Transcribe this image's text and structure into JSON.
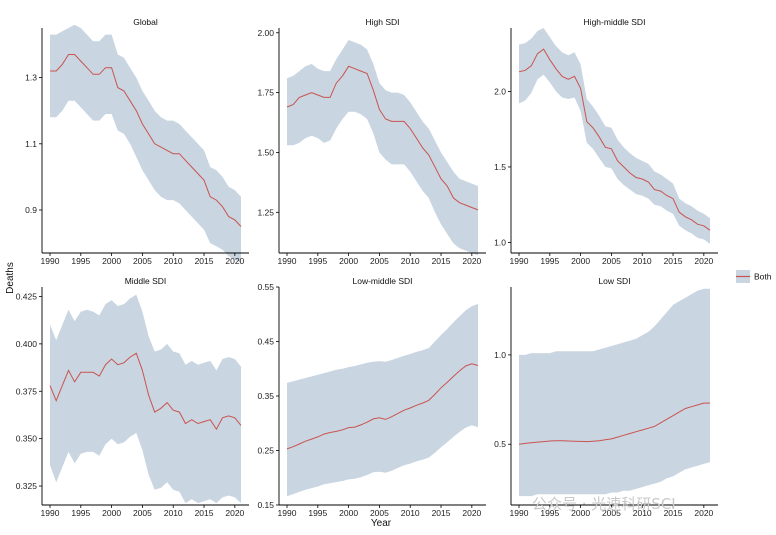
{
  "colors": {
    "band": "#c9d6e2",
    "line": "#c9534f",
    "axis": "#000000"
  },
  "chart_data": {
    "type": "line",
    "ylabel": "Deaths",
    "xlabel": "Year",
    "legend": {
      "position": "right",
      "label": "Both"
    },
    "years": [
      1990,
      1991,
      1992,
      1993,
      1994,
      1995,
      1996,
      1997,
      1998,
      1999,
      2000,
      2001,
      2002,
      2003,
      2004,
      2005,
      2006,
      2007,
      2008,
      2009,
      2010,
      2011,
      2012,
      2013,
      2014,
      2015,
      2016,
      2017,
      2018,
      2019,
      2020,
      2021
    ],
    "xticks": [
      1990,
      1995,
      2000,
      2005,
      2010,
      2015,
      2020
    ],
    "panels": [
      {
        "title": "Global",
        "ylim": [
          0.77,
          1.45
        ],
        "yticks": [
          "0.9",
          "1.1",
          "1.3"
        ],
        "ytick_values": [
          0.9,
          1.1,
          1.3
        ],
        "value": [
          1.32,
          1.32,
          1.34,
          1.37,
          1.37,
          1.35,
          1.33,
          1.31,
          1.31,
          1.33,
          1.33,
          1.27,
          1.26,
          1.23,
          1.2,
          1.16,
          1.13,
          1.1,
          1.09,
          1.08,
          1.07,
          1.07,
          1.05,
          1.03,
          1.01,
          0.99,
          0.94,
          0.93,
          0.91,
          0.88,
          0.87,
          0.85
        ],
        "upper": [
          1.43,
          1.43,
          1.44,
          1.45,
          1.46,
          1.45,
          1.43,
          1.41,
          1.41,
          1.43,
          1.43,
          1.37,
          1.36,
          1.33,
          1.3,
          1.26,
          1.23,
          1.2,
          1.18,
          1.17,
          1.17,
          1.16,
          1.14,
          1.12,
          1.1,
          1.08,
          1.03,
          1.02,
          1.0,
          0.97,
          0.96,
          0.94
        ],
        "lower": [
          1.18,
          1.18,
          1.2,
          1.23,
          1.23,
          1.21,
          1.19,
          1.17,
          1.17,
          1.19,
          1.19,
          1.14,
          1.13,
          1.1,
          1.06,
          1.02,
          0.99,
          0.96,
          0.94,
          0.93,
          0.93,
          0.92,
          0.9,
          0.88,
          0.86,
          0.84,
          0.8,
          0.79,
          0.78,
          0.76,
          0.75,
          0.74
        ]
      },
      {
        "title": "High SDI",
        "ylim": [
          1.08,
          2.02
        ],
        "yticks": [
          "1.25",
          "1.50",
          "1.75",
          "2.00"
        ],
        "ytick_values": [
          1.25,
          1.5,
          1.75,
          2.0
        ],
        "value": [
          1.69,
          1.7,
          1.73,
          1.74,
          1.75,
          1.74,
          1.73,
          1.73,
          1.79,
          1.82,
          1.86,
          1.85,
          1.84,
          1.83,
          1.76,
          1.68,
          1.64,
          1.63,
          1.63,
          1.63,
          1.6,
          1.56,
          1.52,
          1.49,
          1.44,
          1.39,
          1.36,
          1.31,
          1.29,
          1.28,
          1.27,
          1.26
        ],
        "upper": [
          1.81,
          1.82,
          1.84,
          1.86,
          1.87,
          1.85,
          1.84,
          1.84,
          1.89,
          1.93,
          1.97,
          1.96,
          1.95,
          1.93,
          1.87,
          1.79,
          1.76,
          1.75,
          1.75,
          1.74,
          1.71,
          1.67,
          1.63,
          1.6,
          1.55,
          1.5,
          1.46,
          1.42,
          1.39,
          1.38,
          1.37,
          1.36
        ],
        "lower": [
          1.53,
          1.53,
          1.54,
          1.56,
          1.57,
          1.56,
          1.54,
          1.55,
          1.6,
          1.64,
          1.67,
          1.67,
          1.66,
          1.64,
          1.58,
          1.5,
          1.47,
          1.45,
          1.45,
          1.45,
          1.42,
          1.38,
          1.34,
          1.31,
          1.25,
          1.2,
          1.16,
          1.12,
          1.1,
          1.09,
          1.08,
          1.07
        ]
      },
      {
        "title": "High-middle SDI",
        "ylim": [
          0.93,
          2.42
        ],
        "yticks": [
          "1.0",
          "1.5",
          "2.0"
        ],
        "ytick_values": [
          1.0,
          1.5,
          2.0
        ],
        "value": [
          2.13,
          2.14,
          2.17,
          2.25,
          2.28,
          2.21,
          2.15,
          2.1,
          2.08,
          2.1,
          2.02,
          1.8,
          1.76,
          1.7,
          1.63,
          1.62,
          1.54,
          1.5,
          1.46,
          1.43,
          1.42,
          1.4,
          1.35,
          1.34,
          1.31,
          1.29,
          1.2,
          1.17,
          1.15,
          1.12,
          1.11,
          1.08
        ],
        "upper": [
          2.31,
          2.32,
          2.35,
          2.4,
          2.42,
          2.36,
          2.3,
          2.26,
          2.24,
          2.26,
          2.18,
          1.95,
          1.9,
          1.84,
          1.77,
          1.76,
          1.68,
          1.63,
          1.59,
          1.56,
          1.54,
          1.52,
          1.47,
          1.45,
          1.42,
          1.39,
          1.29,
          1.26,
          1.24,
          1.21,
          1.19,
          1.16
        ],
        "lower": [
          1.92,
          1.94,
          1.99,
          2.08,
          2.11,
          2.06,
          2.0,
          1.96,
          1.95,
          1.96,
          1.87,
          1.66,
          1.62,
          1.56,
          1.5,
          1.49,
          1.42,
          1.38,
          1.35,
          1.32,
          1.31,
          1.29,
          1.25,
          1.24,
          1.21,
          1.19,
          1.11,
          1.08,
          1.06,
          1.03,
          1.02,
          0.99
        ]
      },
      {
        "title": "Middle SDI",
        "ylim": [
          0.315,
          0.43
        ],
        "yticks": [
          "0.325",
          "0.350",
          "0.375",
          "0.400",
          "0.425"
        ],
        "ytick_values": [
          0.325,
          0.35,
          0.375,
          0.4,
          0.425
        ],
        "value": [
          0.378,
          0.37,
          0.378,
          0.386,
          0.38,
          0.385,
          0.385,
          0.385,
          0.383,
          0.389,
          0.392,
          0.389,
          0.39,
          0.393,
          0.395,
          0.386,
          0.373,
          0.364,
          0.366,
          0.369,
          0.365,
          0.364,
          0.358,
          0.36,
          0.358,
          0.359,
          0.36,
          0.355,
          0.361,
          0.362,
          0.361,
          0.357
        ],
        "upper": [
          0.41,
          0.402,
          0.41,
          0.418,
          0.412,
          0.417,
          0.418,
          0.417,
          0.415,
          0.421,
          0.423,
          0.42,
          0.421,
          0.424,
          0.426,
          0.417,
          0.404,
          0.396,
          0.397,
          0.4,
          0.396,
          0.395,
          0.389,
          0.391,
          0.389,
          0.39,
          0.391,
          0.386,
          0.392,
          0.393,
          0.392,
          0.388
        ],
        "lower": [
          0.336,
          0.327,
          0.335,
          0.343,
          0.337,
          0.342,
          0.343,
          0.343,
          0.341,
          0.347,
          0.35,
          0.347,
          0.348,
          0.351,
          0.353,
          0.344,
          0.331,
          0.323,
          0.324,
          0.327,
          0.323,
          0.322,
          0.316,
          0.318,
          0.316,
          0.317,
          0.318,
          0.316,
          0.319,
          0.32,
          0.319,
          0.316
        ]
      },
      {
        "title": "Low-middle SDI",
        "ylim": [
          0.15,
          0.55
        ],
        "yticks": [
          "0.15",
          "0.25",
          "0.35",
          "0.45",
          "0.55"
        ],
        "ytick_values": [
          0.15,
          0.25,
          0.35,
          0.45,
          0.55
        ],
        "value": [
          0.253,
          0.257,
          0.262,
          0.267,
          0.271,
          0.275,
          0.28,
          0.283,
          0.285,
          0.288,
          0.292,
          0.293,
          0.297,
          0.302,
          0.308,
          0.31,
          0.307,
          0.312,
          0.318,
          0.324,
          0.328,
          0.333,
          0.337,
          0.342,
          0.353,
          0.365,
          0.375,
          0.386,
          0.396,
          0.405,
          0.409,
          0.406
        ],
        "upper": [
          0.374,
          0.377,
          0.38,
          0.383,
          0.386,
          0.389,
          0.392,
          0.395,
          0.398,
          0.4,
          0.403,
          0.405,
          0.408,
          0.411,
          0.413,
          0.414,
          0.413,
          0.416,
          0.42,
          0.424,
          0.427,
          0.431,
          0.434,
          0.438,
          0.45,
          0.462,
          0.473,
          0.485,
          0.496,
          0.507,
          0.515,
          0.519
        ],
        "lower": [
          0.166,
          0.17,
          0.174,
          0.178,
          0.181,
          0.184,
          0.188,
          0.19,
          0.192,
          0.194,
          0.197,
          0.198,
          0.201,
          0.205,
          0.21,
          0.211,
          0.209,
          0.213,
          0.218,
          0.223,
          0.226,
          0.23,
          0.233,
          0.237,
          0.246,
          0.256,
          0.265,
          0.275,
          0.284,
          0.292,
          0.296,
          0.293
        ]
      },
      {
        "title": "Low SDI",
        "ylim": [
          0.16,
          1.38
        ],
        "yticks": [
          "0.5",
          "1.0"
        ],
        "ytick_values": [
          0.5,
          1.0
        ],
        "value": [
          0.5,
          0.505,
          0.508,
          0.512,
          0.515,
          0.518,
          0.52,
          0.52,
          0.518,
          0.517,
          0.516,
          0.515,
          0.517,
          0.52,
          0.525,
          0.53,
          0.54,
          0.55,
          0.56,
          0.57,
          0.58,
          0.59,
          0.6,
          0.62,
          0.64,
          0.66,
          0.68,
          0.7,
          0.71,
          0.72,
          0.73,
          0.73
        ],
        "upper": [
          1.0,
          1.0,
          1.01,
          1.01,
          1.01,
          1.01,
          1.02,
          1.02,
          1.02,
          1.02,
          1.02,
          1.02,
          1.02,
          1.03,
          1.04,
          1.05,
          1.06,
          1.07,
          1.08,
          1.09,
          1.11,
          1.13,
          1.16,
          1.2,
          1.24,
          1.28,
          1.3,
          1.32,
          1.34,
          1.36,
          1.37,
          1.37
        ],
        "lower": [
          0.21,
          0.21,
          0.21,
          0.22,
          0.22,
          0.22,
          0.22,
          0.22,
          0.22,
          0.22,
          0.22,
          0.22,
          0.22,
          0.22,
          0.22,
          0.23,
          0.23,
          0.24,
          0.24,
          0.25,
          0.26,
          0.27,
          0.28,
          0.29,
          0.31,
          0.32,
          0.34,
          0.36,
          0.37,
          0.38,
          0.39,
          0.4
        ]
      }
    ]
  },
  "watermark": {
    "text": "公众号 · 光速科研SCI"
  }
}
